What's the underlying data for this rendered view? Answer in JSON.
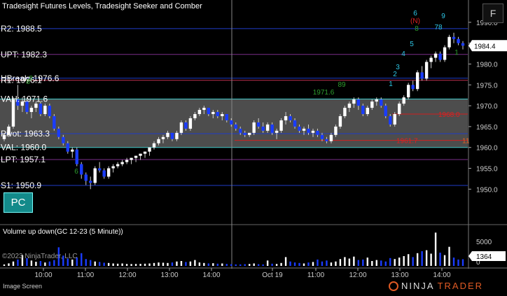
{
  "app": {
    "chart_title": "Tradesight Futures Levels, Tradesight Seeker and Comber",
    "f_button_label": "F",
    "pc_button_label": "PC",
    "volume_panel_title": "Volume up down(GC 12-23 (5 Minute))",
    "copyright": "©2023 NinjaTrader, LLC",
    "image_screen_label": "Image Screen",
    "logo_ninja": "NINJA",
    "logo_trader": "TRADER",
    "logo_mark": "®"
  },
  "chart_data": {
    "type": "candlestick",
    "instrument": "GC 12-23",
    "timeframe": "5 Minute",
    "ylim": [
      1942,
      1993
    ],
    "price_ticks": [
      "1950.0",
      "1955.0",
      "1960.0",
      "1965.0",
      "1970.0",
      "1975.0",
      "1980.0",
      "1985.0",
      "1990.0"
    ],
    "current_price": "1984.4",
    "time_labels": [
      "10:00",
      "11:00",
      "12:00",
      "13:00",
      "14:00",
      "Oct 19",
      "11:00",
      "12:00",
      "13:00",
      "14:00"
    ],
    "session_break_label": "Oct 19",
    "levels": [
      {
        "label": "R2: 1988.5",
        "value": 1988.5,
        "color": "#1f3cc8"
      },
      {
        "label": "UPT: 1982.3",
        "value": 1982.3,
        "color": "#7a2f8a"
      },
      {
        "label": "HBreak: 1976.6",
        "value": 1976.6,
        "color": "#1f3cc8"
      },
      {
        "label": "R1: 1976.1",
        "value": 1976.1,
        "color": "#c03050"
      },
      {
        "label": "VAH: 1971.6",
        "value": 1971.6,
        "color": "#40c8c8"
      },
      {
        "label": "Pivot: 1963.3",
        "value": 1963.3,
        "color": "#1f3cc8"
      },
      {
        "label": "VAL: 1960.0",
        "value": 1960.0,
        "color": "#40c8c8"
      },
      {
        "label": "LPT: 1957.1",
        "value": 1957.1,
        "color": "#7a2f8a"
      },
      {
        "label": "S1: 1950.9",
        "value": 1950.9,
        "color": "#1f3cc8"
      }
    ],
    "value_area": {
      "high": 1971.6,
      "low": 1960.0,
      "color": "#5a5a5a"
    },
    "red_levels": [
      {
        "label": "1968.0",
        "value": 1968.0
      },
      {
        "label": "1961.7",
        "value": 1961.7
      }
    ],
    "red_edge_marker": "11",
    "candles": [
      [
        1962.0,
        1963.5,
        1961.5,
        1963.0
      ],
      [
        1963.0,
        1965.5,
        1962.5,
        1965.0
      ],
      [
        1965.0,
        1972.0,
        1964.5,
        1971.5
      ],
      [
        1971.5,
        1975.0,
        1969.0,
        1970.0
      ],
      [
        1970.0,
        1972.0,
        1968.5,
        1971.0
      ],
      [
        1971.0,
        1972.0,
        1968.0,
        1968.5
      ],
      [
        1968.5,
        1970.0,
        1967.0,
        1969.5
      ],
      [
        1969.5,
        1971.0,
        1968.5,
        1970.5
      ],
      [
        1970.5,
        1971.0,
        1967.5,
        1968.0
      ],
      [
        1968.0,
        1970.5,
        1967.5,
        1970.0
      ],
      [
        1970.0,
        1970.5,
        1967.0,
        1967.5
      ],
      [
        1967.5,
        1968.0,
        1964.0,
        1964.5
      ],
      [
        1964.5,
        1965.0,
        1962.0,
        1962.5
      ],
      [
        1962.5,
        1963.0,
        1960.5,
        1961.0
      ],
      [
        1961.0,
        1961.5,
        1958.5,
        1959.0
      ],
      [
        1959.0,
        1960.0,
        1957.5,
        1959.5
      ],
      [
        1959.5,
        1960.0,
        1955.5,
        1956.0
      ],
      [
        1956.0,
        1956.5,
        1952.5,
        1953.5
      ],
      [
        1953.5,
        1954.0,
        1951.0,
        1952.0
      ],
      [
        1952.0,
        1953.0,
        1950.0,
        1951.5
      ],
      [
        1951.5,
        1955.5,
        1951.0,
        1955.0
      ],
      [
        1955.0,
        1956.5,
        1954.0,
        1954.5
      ],
      [
        1954.5,
        1955.0,
        1952.5,
        1953.0
      ],
      [
        1953.0,
        1955.5,
        1952.5,
        1955.0
      ],
      [
        1955.0,
        1956.0,
        1954.0,
        1955.5
      ],
      [
        1955.5,
        1956.5,
        1955.0,
        1956.0
      ],
      [
        1956.0,
        1957.0,
        1955.5,
        1956.5
      ],
      [
        1956.5,
        1957.5,
        1956.0,
        1957.0
      ],
      [
        1957.0,
        1957.5,
        1956.0,
        1957.5
      ],
      [
        1957.5,
        1958.0,
        1956.5,
        1958.0
      ],
      [
        1958.0,
        1958.5,
        1957.0,
        1958.5
      ],
      [
        1958.5,
        1959.0,
        1957.5,
        1959.0
      ],
      [
        1959.0,
        1960.0,
        1958.0,
        1960.0
      ],
      [
        1960.0,
        1961.5,
        1959.5,
        1961.0
      ],
      [
        1961.0,
        1962.5,
        1960.5,
        1962.0
      ],
      [
        1962.0,
        1963.0,
        1961.0,
        1962.5
      ],
      [
        1962.5,
        1964.0,
        1962.0,
        1963.5
      ],
      [
        1963.5,
        1963.5,
        1961.5,
        1962.0
      ],
      [
        1962.0,
        1964.0,
        1961.5,
        1963.5
      ],
      [
        1963.5,
        1966.5,
        1963.0,
        1966.0
      ],
      [
        1966.0,
        1966.5,
        1964.0,
        1964.5
      ],
      [
        1964.5,
        1967.5,
        1964.0,
        1967.0
      ],
      [
        1967.0,
        1968.5,
        1966.5,
        1968.0
      ],
      [
        1968.0,
        1969.5,
        1967.5,
        1969.0
      ],
      [
        1969.0,
        1970.0,
        1968.0,
        1969.5
      ],
      [
        1969.5,
        1969.5,
        1967.5,
        1968.0
      ],
      [
        1968.0,
        1969.0,
        1967.0,
        1968.5
      ],
      [
        1968.5,
        1969.0,
        1967.0,
        1967.5
      ],
      [
        1967.5,
        1968.5,
        1966.5,
        1968.0
      ],
      [
        1968.0,
        1968.0,
        1966.0,
        1966.5
      ],
      [
        1966.5,
        1967.0,
        1965.0,
        1965.5
      ],
      [
        1965.5,
        1966.0,
        1964.0,
        1964.5
      ],
      [
        1964.5,
        1965.0,
        1963.0,
        1963.5
      ],
      [
        1963.5,
        1964.0,
        1962.5,
        1963.0
      ],
      [
        1963.0,
        1963.5,
        1962.5,
        1963.5
      ],
      [
        1963.5,
        1966.5,
        1963.0,
        1966.0
      ],
      [
        1966.0,
        1967.0,
        1964.5,
        1965.0
      ],
      [
        1965.0,
        1966.0,
        1963.5,
        1964.0
      ],
      [
        1964.0,
        1966.0,
        1963.5,
        1965.5
      ],
      [
        1965.5,
        1966.0,
        1963.0,
        1963.5
      ],
      [
        1963.5,
        1964.5,
        1962.0,
        1964.0
      ],
      [
        1964.0,
        1967.0,
        1963.5,
        1966.5
      ],
      [
        1966.5,
        1968.5,
        1965.5,
        1967.5
      ],
      [
        1967.5,
        1968.0,
        1966.0,
        1966.5
      ],
      [
        1966.5,
        1967.0,
        1964.5,
        1965.0
      ],
      [
        1965.0,
        1965.5,
        1963.5,
        1964.0
      ],
      [
        1964.0,
        1965.0,
        1963.0,
        1964.5
      ],
      [
        1964.5,
        1965.5,
        1963.0,
        1963.5
      ],
      [
        1963.5,
        1964.5,
        1962.5,
        1964.0
      ],
      [
        1964.0,
        1964.5,
        1962.5,
        1963.0
      ],
      [
        1963.0,
        1963.5,
        1961.5,
        1962.0
      ],
      [
        1962.0,
        1962.5,
        1961.0,
        1961.5
      ],
      [
        1961.5,
        1963.5,
        1961.0,
        1963.0
      ],
      [
        1963.0,
        1965.5,
        1962.5,
        1965.0
      ],
      [
        1965.0,
        1968.0,
        1964.5,
        1967.5
      ],
      [
        1967.5,
        1970.0,
        1967.0,
        1969.5
      ],
      [
        1969.5,
        1971.0,
        1968.5,
        1970.5
      ],
      [
        1970.5,
        1972.0,
        1969.5,
        1971.5
      ],
      [
        1971.5,
        1972.0,
        1969.0,
        1970.0
      ],
      [
        1970.0,
        1970.5,
        1967.5,
        1968.0
      ],
      [
        1968.0,
        1970.0,
        1967.5,
        1969.5
      ],
      [
        1969.5,
        1971.5,
        1969.0,
        1971.0
      ],
      [
        1971.0,
        1972.0,
        1970.0,
        1971.5
      ],
      [
        1971.5,
        1972.0,
        1969.5,
        1970.0
      ],
      [
        1970.0,
        1970.5,
        1967.0,
        1967.5
      ],
      [
        1967.5,
        1968.0,
        1965.0,
        1965.5
      ],
      [
        1965.5,
        1968.5,
        1965.0,
        1968.0
      ],
      [
        1968.0,
        1971.0,
        1967.5,
        1970.5
      ],
      [
        1970.5,
        1972.5,
        1970.0,
        1972.0
      ],
      [
        1972.0,
        1975.5,
        1971.5,
        1975.0
      ],
      [
        1975.0,
        1976.0,
        1973.5,
        1974.0
      ],
      [
        1974.0,
        1978.5,
        1973.5,
        1978.0
      ],
      [
        1978.0,
        1979.5,
        1976.0,
        1976.5
      ],
      [
        1976.5,
        1981.0,
        1976.0,
        1980.5
      ],
      [
        1980.5,
        1982.0,
        1979.0,
        1981.5
      ],
      [
        1981.5,
        1983.0,
        1980.5,
        1982.5
      ],
      [
        1982.5,
        1983.0,
        1980.5,
        1981.0
      ],
      [
        1981.0,
        1984.5,
        1980.5,
        1984.0
      ],
      [
        1984.0,
        1987.0,
        1983.5,
        1986.5
      ],
      [
        1986.5,
        1987.5,
        1985.0,
        1986.0
      ],
      [
        1986.0,
        1986.5,
        1984.5,
        1985.0
      ],
      [
        1985.0,
        1985.5,
        1983.5,
        1984.4
      ]
    ],
    "volume_axis_ticks": [
      "5000",
      "0"
    ],
    "current_volume": "1364",
    "volumes": [
      300,
      520,
      900,
      1300,
      2200,
      1600,
      1100,
      850,
      1000,
      700,
      900,
      1200,
      3800,
      2100,
      1500,
      1300,
      1700,
      2600,
      1400,
      1200,
      900,
      800,
      650,
      600,
      500,
      450,
      500,
      400,
      380,
      400,
      420,
      450,
      500,
      600,
      700,
      650,
      600,
      700,
      900,
      1000,
      800,
      900,
      1200,
      700,
      600,
      500,
      550,
      450,
      500,
      400,
      350,
      300,
      300,
      350,
      400,
      500,
      350,
      300,
      1100,
      450,
      400,
      600,
      1800,
      900,
      700,
      600,
      500,
      700,
      800,
      1300,
      900,
      1100,
      700,
      900,
      1400,
      1800,
      1500,
      1900,
      1200,
      1300,
      1700,
      1000,
      1200,
      1100,
      900,
      1600,
      1400,
      1700,
      2000,
      2400,
      1800,
      2600,
      3000,
      3200,
      2500,
      6800,
      2700,
      2200,
      3900,
      1700,
      1300,
      1364
    ],
    "annotations": [
      {
        "text": "8",
        "color": "#2e9e2e"
      },
      {
        "text": "8",
        "color": "#2e9e2e"
      },
      {
        "text": "6",
        "color": "#2e9e2e"
      },
      {
        "text": "1971.6",
        "color": "#2e9e2e"
      },
      {
        "text": "89",
        "color": "#2e9e2e"
      },
      {
        "text": "1",
        "color": "#2ec8e8"
      },
      {
        "text": "2",
        "color": "#2ec8e8"
      },
      {
        "text": "3",
        "color": "#2ec8e8"
      },
      {
        "text": "4",
        "color": "#2ec8e8"
      },
      {
        "text": "5",
        "color": "#2ec8e8"
      },
      {
        "text": "6",
        "color": "#2ec8e8"
      },
      {
        "text": "(N)",
        "color": "#e02020"
      },
      {
        "text": "8",
        "color": "#2e9e2e"
      },
      {
        "text": "78",
        "color": "#2ec8e8"
      },
      {
        "text": "9",
        "color": "#2ec8e8"
      },
      {
        "text": "1",
        "color": "#2e9e2e"
      }
    ]
  }
}
